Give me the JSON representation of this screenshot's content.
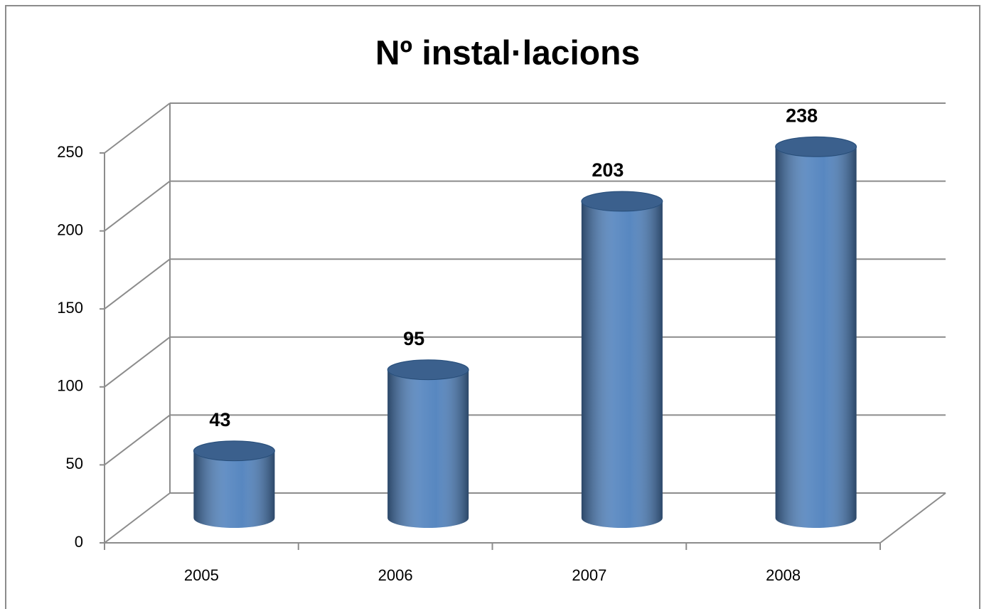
{
  "chart_data": {
    "type": "bar3d",
    "title": "Nº instal·lacions",
    "categories": [
      "2005",
      "2006",
      "2007",
      "2008"
    ],
    "values": [
      43,
      95,
      203,
      238
    ],
    "color": "#4f81bd",
    "ylim": [
      0,
      250
    ],
    "yticks": [
      0,
      50,
      100,
      150,
      200,
      250
    ],
    "grid": true
  }
}
